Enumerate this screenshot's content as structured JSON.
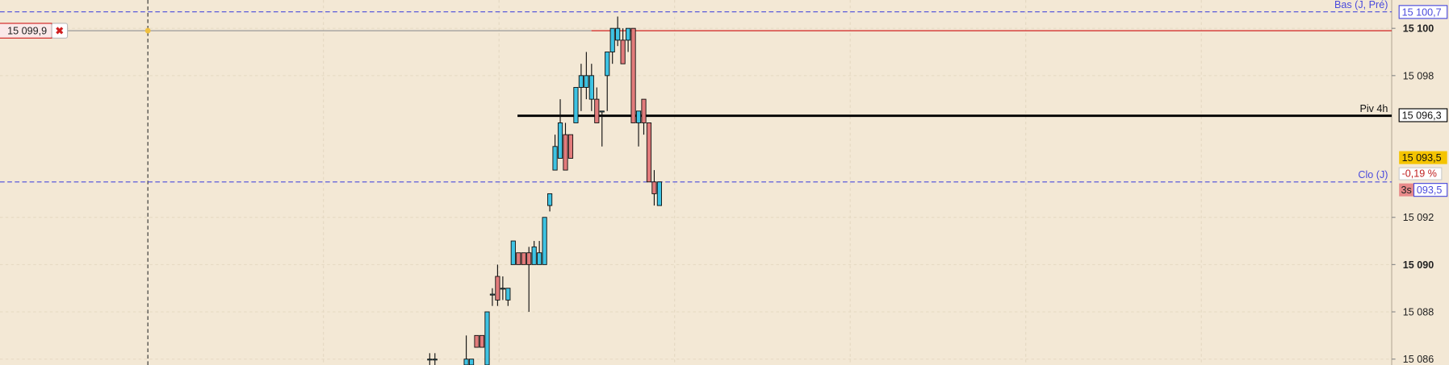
{
  "chart_data": {
    "type": "candlestick",
    "ylim": [
      15085.75,
      15101.2
    ],
    "yticks": [
      {
        "value": 15100,
        "label": "15 100"
      },
      {
        "value": 15098,
        "label": "15 098"
      },
      {
        "value": 15092,
        "label": "15 092"
      },
      {
        "value": 15090,
        "label": "15 090"
      },
      {
        "value": 15088,
        "label": "15 088"
      },
      {
        "value": 15086,
        "label": "15 086"
      }
    ],
    "up_color": "#3ec3e3",
    "down_color": "#e27b7b",
    "open": [
      15086,
      15086,
      null,
      null,
      null,
      null,
      null,
      15085.75,
      15085.75,
      15087,
      15087,
      15085.75,
      15088.75,
      15089.5,
      15089,
      15088.5,
      15090,
      15090.5,
      15090.5,
      15090.5,
      15090,
      15090,
      15090,
      15092.5,
      15094,
      15094.5,
      15095.5,
      15095.5,
      15096,
      15097.5,
      15097.5,
      15097,
      15097,
      15096.5,
      15098,
      15099,
      15099.5,
      15099.5,
      15099.5,
      15100,
      15096,
      15097,
      15096,
      15093.5,
      15092.5
    ],
    "high": [
      15086.25,
      15086.25,
      null,
      null,
      null,
      null,
      null,
      15087,
      15086,
      15087,
      15087,
      15088,
      15089,
      15090,
      15089.5,
      15089,
      15091,
      15090.5,
      15090.5,
      15090.75,
      15091,
      15091,
      15092,
      15093,
      15095.5,
      15097,
      15096,
      15095.5,
      15097.5,
      15098.5,
      15099,
      15098.5,
      15097.5,
      15096.5,
      15099,
      15100,
      15100.5,
      15100,
      15100,
      15100,
      15096.5,
      15097,
      15096,
      15094,
      15093.5
    ],
    "low": [
      15085.75,
      15085.75,
      null,
      null,
      null,
      null,
      null,
      15085.75,
      15085.75,
      15086.5,
      15086.5,
      15085.75,
      15088.25,
      15088.25,
      15088.5,
      15088.25,
      15090,
      15090,
      15090,
      15088,
      15090,
      15090,
      15090,
      15092.25,
      15094,
      15094.5,
      15094,
      15094.5,
      15096,
      15096.5,
      15097,
      15096.5,
      15096,
      15095,
      15096.5,
      15098.5,
      15099.25,
      15098.5,
      15099,
      15096,
      15095,
      15095.5,
      15093.5,
      15092.5,
      15092.5
    ],
    "close": [
      15086,
      15086,
      null,
      null,
      null,
      null,
      null,
      15086,
      15086,
      15086.5,
      15086.5,
      15088,
      15088.75,
      15088.5,
      15089,
      15089,
      15091,
      15090,
      15090,
      15090,
      15090.75,
      15090.5,
      15092,
      15093,
      15095,
      15096,
      15094,
      15094.5,
      15097.5,
      15098,
      15098,
      15098,
      15096,
      15096.5,
      15099,
      15100,
      15100,
      15098.5,
      15100,
      15096,
      15096.5,
      15096,
      15093.5,
      15093,
      15093.5
    ],
    "levels": [
      {
        "name": "Bas (J, Pré)",
        "value": 15100.7,
        "label": "15 100,7",
        "color": "#4a4adc",
        "dashed": true
      },
      {
        "name": "Piv 4h",
        "value": 15096.3,
        "label": "15 096,3",
        "color": "#000000",
        "dashed": false
      },
      {
        "name": "Clo (J)",
        "value": 15093.5,
        "label": "093,5",
        "color": "#4a4adc",
        "dashed": true
      }
    ],
    "order": {
      "value": 15099.9,
      "label": "15 099,9",
      "color": "#d02020"
    },
    "last_price": {
      "value": 15093.5,
      "label": "15 093,5",
      "color": "#f5c400"
    },
    "change_label": "-0,19 %",
    "countdown": "3s"
  }
}
